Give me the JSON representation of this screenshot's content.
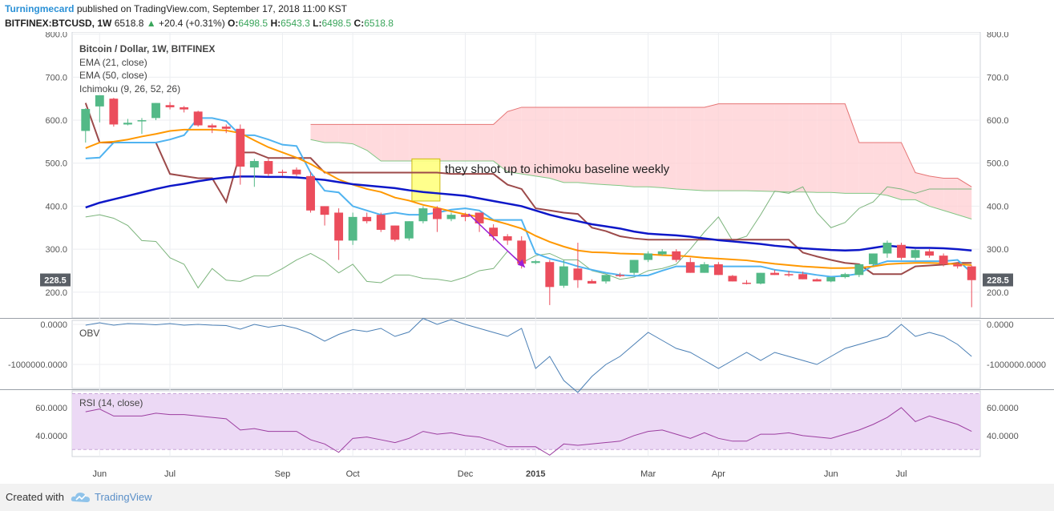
{
  "header": {
    "author": "Turningmecard",
    "published": "published on TradingView.com, September 17, 2018 11:00 KST",
    "symbol": "BITFINEX:BTCUSD, 1W",
    "last": "6518.8",
    "change": "+20.4 (+0.31%)",
    "o_label": "O:",
    "o": "6498.5",
    "h_label": "H:",
    "h": "6543.3",
    "l_label": "L:",
    "l": "6498.5",
    "c_label": "C:",
    "c": "6518.8"
  },
  "legend": {
    "title": "Bitcoin / Dollar, 1W, BITFINEX",
    "ema21": "EMA (21, close)",
    "ema50": "EMA (50, close)",
    "ichimoku": "Ichimoku (9, 26, 52, 26)"
  },
  "annotation": {
    "text": "they shoot up to ichimoku baseline weekly"
  },
  "colors": {
    "up": "#53b987",
    "down": "#eb4d5c",
    "ema21": "#ff9800",
    "ema50": "#0d17c8",
    "conversion": "#4fb3f0",
    "base": "#9c4a4a",
    "cloud_red": "#ffcdd2",
    "cloud_green": "#c8e6c9",
    "obv": "#4a7fb5",
    "rsi": "#9c3ea0",
    "rsi_band": "#ecd9f5",
    "highlight": "#ffff80"
  },
  "footer": {
    "created": "Created with",
    "brand": "TradingView"
  },
  "chart_data": [
    {
      "type": "candlestick",
      "title": "Bitcoin / Dollar, 1W, BITFINEX",
      "x_labels": [
        "Jun",
        "Jul",
        "Sep",
        "Oct",
        "Dec",
        "2015",
        "Mar",
        "Apr",
        "Jun",
        "Jul"
      ],
      "ylim": [
        140,
        805
      ],
      "y_ticks": [
        "800.0",
        "700.0",
        "600.0",
        "500.0",
        "400.0",
        "300.0",
        "200.0"
      ],
      "last_price_label": "228.5",
      "candles": [
        [
          575,
          628,
          548,
          626
        ],
        [
          632,
          653,
          595,
          658
        ],
        [
          650,
          652,
          585,
          590
        ],
        [
          590,
          603,
          588,
          594
        ],
        [
          598,
          605,
          568,
          600
        ],
        [
          605,
          640,
          600,
          640
        ],
        [
          635,
          642,
          625,
          630
        ],
        [
          630,
          633,
          618,
          625
        ],
        [
          620,
          622,
          585,
          588
        ],
        [
          588,
          592,
          570,
          583
        ],
        [
          585,
          590,
          570,
          580
        ],
        [
          580,
          590,
          450,
          492
        ],
        [
          490,
          510,
          445,
          505
        ],
        [
          505,
          510,
          470,
          475
        ],
        [
          480,
          485,
          470,
          478
        ],
        [
          485,
          490,
          470,
          474
        ],
        [
          470,
          480,
          385,
          390
        ],
        [
          400,
          400,
          355,
          380
        ],
        [
          385,
          395,
          275,
          320
        ],
        [
          320,
          385,
          310,
          375
        ],
        [
          375,
          385,
          360,
          365
        ],
        [
          380,
          385,
          340,
          345
        ],
        [
          355,
          355,
          318,
          322
        ],
        [
          325,
          365,
          320,
          365
        ],
        [
          365,
          400,
          360,
          395
        ],
        [
          395,
          400,
          340,
          370
        ],
        [
          370,
          385,
          365,
          380
        ],
        [
          380,
          385,
          365,
          375
        ],
        [
          385,
          385,
          340,
          360
        ],
        [
          350,
          358,
          320,
          330
        ],
        [
          330,
          335,
          310,
          320
        ],
        [
          320,
          330,
          255,
          266
        ],
        [
          268,
          275,
          265,
          272
        ],
        [
          270,
          275,
          170,
          212
        ],
        [
          215,
          275,
          210,
          260
        ],
        [
          255,
          315,
          210,
          228
        ],
        [
          226,
          230,
          220,
          220
        ],
        [
          225,
          240,
          220,
          240
        ],
        [
          240,
          245,
          235,
          238
        ],
        [
          245,
          275,
          240,
          275
        ],
        [
          275,
          295,
          270,
          290
        ],
        [
          288,
          300,
          285,
          295
        ],
        [
          295,
          300,
          270,
          275
        ],
        [
          270,
          280,
          245,
          245
        ],
        [
          245,
          270,
          245,
          265
        ],
        [
          265,
          270,
          240,
          240
        ],
        [
          238,
          240,
          225,
          225
        ],
        [
          222,
          228,
          218,
          220
        ],
        [
          220,
          245,
          218,
          245
        ],
        [
          245,
          252,
          240,
          240
        ],
        [
          242,
          250,
          236,
          240
        ],
        [
          242,
          248,
          230,
          230
        ],
        [
          230,
          232,
          225,
          225
        ],
        [
          225,
          235,
          223,
          235
        ],
        [
          235,
          245,
          232,
          242
        ],
        [
          240,
          265,
          235,
          265
        ],
        [
          265,
          290,
          260,
          290
        ],
        [
          290,
          320,
          280,
          315
        ],
        [
          310,
          315,
          275,
          280
        ],
        [
          280,
          300,
          275,
          298
        ],
        [
          295,
          300,
          280,
          285
        ],
        [
          285,
          290,
          260,
          265
        ],
        [
          265,
          270,
          255,
          260
        ],
        [
          260,
          262,
          165,
          228
        ]
      ],
      "ema21": [
        535,
        548,
        550,
        555,
        562,
        568,
        575,
        578,
        578,
        578,
        576,
        570,
        553,
        537,
        525,
        513,
        498,
        480,
        462,
        450,
        440,
        433,
        420,
        413,
        403,
        396,
        388,
        381,
        375,
        367,
        358,
        348,
        331,
        317,
        306,
        297,
        293,
        292,
        290,
        289,
        288,
        286,
        285,
        283,
        280,
        278,
        276,
        274,
        270,
        266,
        263,
        260,
        258,
        256,
        256,
        257,
        260,
        265,
        267,
        268,
        268,
        267,
        265,
        263
      ],
      "ema50": [
        397,
        408,
        416,
        424,
        432,
        440,
        447,
        452,
        458,
        463,
        467,
        469,
        469,
        468,
        468,
        467,
        464,
        461,
        456,
        451,
        448,
        445,
        442,
        437,
        433,
        430,
        427,
        424,
        418,
        412,
        406,
        400,
        390,
        380,
        372,
        365,
        358,
        353,
        348,
        341,
        336,
        334,
        332,
        329,
        325,
        321,
        318,
        315,
        312,
        308,
        305,
        302,
        300,
        298,
        297,
        298,
        303,
        308,
        305,
        303,
        303,
        302,
        300,
        297
      ],
      "conversion": [
        511,
        513,
        548,
        548,
        548,
        548,
        555,
        565,
        605,
        605,
        598,
        565,
        565,
        555,
        543,
        540,
        478,
        436,
        432,
        400,
        390,
        380,
        385,
        380,
        380,
        385,
        392,
        395,
        390,
        368,
        368,
        368,
        290,
        278,
        270,
        260,
        252,
        245,
        240,
        238,
        239,
        250,
        260,
        260,
        260,
        260,
        260,
        260,
        260,
        252,
        248,
        245,
        240,
        236,
        238,
        243,
        262,
        272,
        272,
        272,
        272,
        272,
        275,
        245
      ],
      "base": [
        640,
        548,
        548,
        548,
        548,
        548,
        475,
        470,
        465,
        465,
        410,
        525,
        525,
        512,
        512,
        512,
        512,
        478,
        478,
        478,
        478,
        478,
        478,
        478,
        478,
        478,
        475,
        475,
        475,
        475,
        450,
        440,
        395,
        390,
        385,
        382,
        350,
        342,
        330,
        325,
        322,
        322,
        322,
        322,
        322,
        322,
        322,
        322,
        322,
        322,
        322,
        292,
        283,
        275,
        268,
        265,
        242,
        242,
        242,
        260,
        262,
        264,
        268,
        268
      ],
      "span_a": [
        null,
        null,
        null,
        null,
        null,
        null,
        null,
        null,
        null,
        null,
        null,
        null,
        null,
        null,
        null,
        null,
        590,
        590,
        590,
        590,
        590,
        590,
        590,
        590,
        590,
        590,
        590,
        590,
        590,
        590,
        620,
        630,
        630,
        630,
        630,
        630,
        630,
        630,
        630,
        630,
        630,
        630,
        630,
        630,
        630,
        638,
        638,
        638,
        638,
        638,
        638,
        638,
        638,
        638,
        638,
        548,
        548,
        548,
        548,
        478,
        470,
        465,
        465,
        445
      ],
      "span_b": [
        null,
        null,
        null,
        null,
        null,
        null,
        null,
        null,
        null,
        null,
        null,
        null,
        null,
        null,
        null,
        null,
        555,
        548,
        548,
        545,
        530,
        505,
        505,
        505,
        505,
        505,
        505,
        505,
        505,
        505,
        480,
        475,
        470,
        465,
        455,
        455,
        452,
        450,
        448,
        445,
        445,
        443,
        440,
        438,
        436,
        436,
        436,
        436,
        435,
        434,
        433,
        433,
        432,
        432,
        430,
        430,
        430,
        425,
        415,
        415,
        400,
        390,
        380,
        370
      ],
      "lagging": [
        375,
        380,
        372,
        355,
        320,
        318,
        280,
        265,
        210,
        255,
        228,
        225,
        238,
        238,
        255,
        275,
        290,
        272,
        245,
        265,
        225,
        222,
        240,
        240,
        232,
        230,
        225,
        235,
        250,
        255,
        295,
        268,
        285,
        290,
        275,
        275,
        250,
        242,
        230,
        235,
        250,
        255,
        265,
        300,
        340,
        375,
        320,
        330,
        380,
        435,
        430,
        445,
        385,
        350,
        362,
        395,
        410,
        445,
        440,
        430,
        440,
        440,
        440,
        440
      ],
      "extra_green": [
        375,
        380,
        372,
        355,
        320,
        318,
        280,
        265,
        210,
        255,
        228,
        225,
        238,
        238,
        255,
        275,
        290,
        272,
        245,
        265,
        225,
        222,
        240,
        240,
        232,
        230,
        225,
        235,
        250,
        255,
        295,
        268,
        285,
        290,
        275,
        275,
        250,
        242,
        230,
        235,
        250,
        255,
        265,
        300,
        340,
        375,
        320,
        330,
        380,
        435,
        430,
        445,
        385,
        350,
        362,
        395,
        410,
        445,
        440,
        430,
        440,
        440,
        440,
        440
      ]
    },
    {
      "type": "line",
      "title": "OBV",
      "ylim": [
        -1600000,
        100000
      ],
      "y_ticks": [
        "0.0000",
        "-1000000.0000"
      ],
      "values": [
        -20000,
        40000,
        -20000,
        20000,
        10000,
        -10000,
        20000,
        -20000,
        0,
        -20000,
        -30000,
        -120000,
        0,
        -70000,
        -20000,
        -100000,
        -230000,
        -420000,
        -250000,
        -130000,
        -180000,
        -100000,
        -300000,
        -190000,
        150000,
        0,
        120000,
        0,
        -100000,
        -200000,
        -300000,
        -100000,
        -1100000,
        -800000,
        -1400000,
        -1700000,
        -1300000,
        -1000000,
        -800000,
        -500000,
        -200000,
        -400000,
        -600000,
        -700000,
        -900000,
        -1100000,
        -900000,
        -700000,
        -900000,
        -700000,
        -800000,
        -900000,
        -1000000,
        -800000,
        -600000,
        -500000,
        -400000,
        -300000,
        0,
        -300000,
        -200000,
        -300000,
        -500000,
        -800000
      ]
    },
    {
      "type": "line",
      "title": "RSI (14, close)",
      "ylim": [
        25,
        72
      ],
      "band": [
        30,
        70
      ],
      "y_ticks": [
        "60.0000",
        "40.0000"
      ],
      "values": [
        57,
        59,
        54,
        54,
        54,
        56,
        55,
        55,
        54,
        53,
        52,
        44,
        45,
        43,
        43,
        43,
        37,
        34,
        28,
        38,
        39,
        37,
        35,
        38,
        43,
        41,
        42,
        40,
        39,
        36,
        32,
        32,
        32,
        26,
        34,
        33,
        34,
        35,
        36,
        40,
        43,
        44,
        41,
        38,
        42,
        38,
        36,
        36,
        41,
        41,
        42,
        40,
        39,
        38,
        41,
        44,
        48,
        53,
        60,
        50,
        54,
        51,
        48,
        43
      ]
    }
  ]
}
